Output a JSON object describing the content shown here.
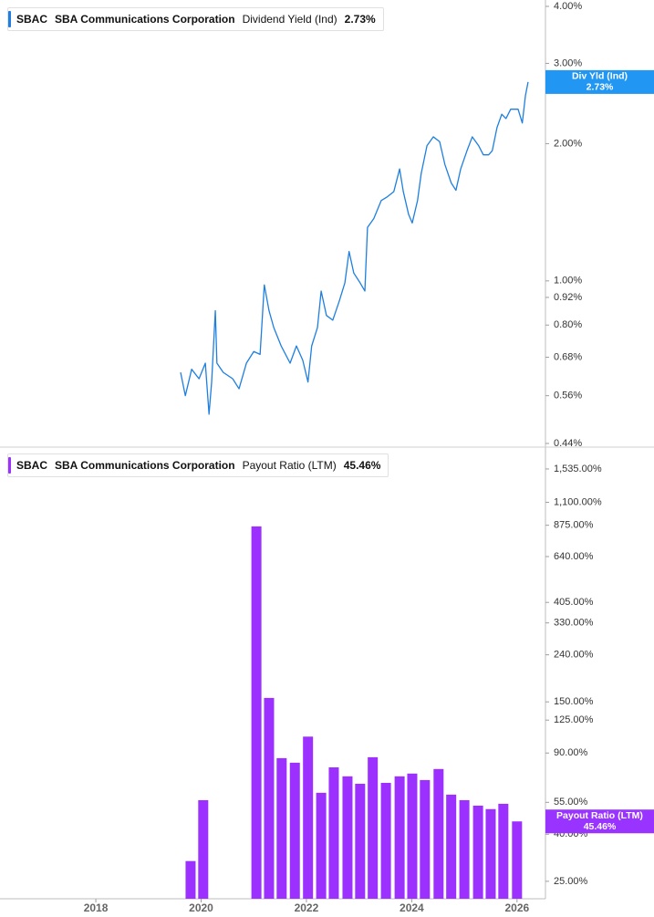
{
  "security": {
    "ticker": "SBAC",
    "name": "SBA Communications Corporation"
  },
  "chart_data": [
    {
      "type": "line",
      "yscale": "log",
      "grid": false,
      "xlim": [
        2016.18,
        2026.54
      ],
      "ylim": [
        0.44,
        4.0
      ],
      "yticks": [
        {
          "value": 4.0,
          "label": "4.00%"
        },
        {
          "value": 3.0,
          "label": "3.00%"
        },
        {
          "value": 2.0,
          "label": "2.00%"
        },
        {
          "value": 1.0,
          "label": "1.00%"
        },
        {
          "value": 0.92,
          "label": "0.92%"
        },
        {
          "value": 0.8,
          "label": "0.80%"
        },
        {
          "value": 0.68,
          "label": "0.68%"
        },
        {
          "value": 0.56,
          "label": "0.56%"
        },
        {
          "value": 0.44,
          "label": "0.44%"
        }
      ],
      "series": [
        {
          "name": "Dividend Yield (Ind)",
          "short_name": "Div Yld (Ind)",
          "color": "#1e7fe0",
          "badge_color": "#2196f3",
          "last_value_label": "2.73%",
          "x": [
            2019.61,
            2019.7,
            2019.82,
            2019.96,
            2020.08,
            2020.15,
            2020.2,
            2020.27,
            2020.3,
            2020.42,
            2020.6,
            2020.72,
            2020.86,
            2021.0,
            2021.12,
            2021.2,
            2021.29,
            2021.38,
            2021.52,
            2021.69,
            2021.81,
            2021.93,
            2022.03,
            2022.1,
            2022.21,
            2022.28,
            2022.38,
            2022.5,
            2022.62,
            2022.73,
            2022.81,
            2022.9,
            2023.02,
            2023.11,
            2023.16,
            2023.28,
            2023.42,
            2023.54,
            2023.66,
            2023.77,
            2023.84,
            2023.94,
            2024.01,
            2024.11,
            2024.18,
            2024.29,
            2024.41,
            2024.53,
            2024.63,
            2024.75,
            2024.84,
            2024.93,
            2025.05,
            2025.15,
            2025.27,
            2025.36,
            2025.46,
            2025.53,
            2025.62,
            2025.71,
            2025.79,
            2025.88,
            2026.02,
            2026.1,
            2026.16,
            2026.21
          ],
          "values": [
            0.63,
            0.56,
            0.64,
            0.61,
            0.66,
            0.51,
            0.6,
            0.86,
            0.66,
            0.63,
            0.61,
            0.58,
            0.66,
            0.7,
            0.69,
            0.98,
            0.86,
            0.79,
            0.72,
            0.66,
            0.72,
            0.67,
            0.6,
            0.72,
            0.79,
            0.95,
            0.84,
            0.82,
            0.9,
            0.99,
            1.16,
            1.04,
            0.99,
            0.95,
            1.31,
            1.37,
            1.5,
            1.53,
            1.57,
            1.76,
            1.57,
            1.4,
            1.34,
            1.5,
            1.72,
            1.98,
            2.07,
            2.02,
            1.8,
            1.64,
            1.58,
            1.76,
            1.93,
            2.07,
            1.98,
            1.89,
            1.89,
            1.93,
            2.17,
            2.32,
            2.27,
            2.38,
            2.38,
            2.22,
            2.55,
            2.73
          ]
        }
      ]
    },
    {
      "type": "bar",
      "yscale": "log",
      "grid": false,
      "xlim": [
        2016.18,
        2026.54
      ],
      "ylim": [
        21,
        1875
      ],
      "xticks": [
        2018,
        2020,
        2022,
        2024,
        2026
      ],
      "yticks": [
        {
          "value": 1535,
          "label": "1,535.00%"
        },
        {
          "value": 1100,
          "label": "1,100.00%"
        },
        {
          "value": 875,
          "label": "875.00%"
        },
        {
          "value": 640,
          "label": "640.00%"
        },
        {
          "value": 405,
          "label": "405.00%"
        },
        {
          "value": 330,
          "label": "330.00%"
        },
        {
          "value": 240,
          "label": "240.00%"
        },
        {
          "value": 150,
          "label": "150.00%"
        },
        {
          "value": 125,
          "label": "125.00%"
        },
        {
          "value": 90,
          "label": "90.00%"
        },
        {
          "value": 55,
          "label": "55.00%"
        },
        {
          "value": 40,
          "label": "40.00%"
        },
        {
          "value": 25,
          "label": "25.00%"
        }
      ],
      "series": [
        {
          "name": "Payout Ratio (LTM)",
          "short_name": "Payout Ratio (LTM)",
          "color": "#9b30ff",
          "badge_color": "#9933ff",
          "last_value_label": "45.46%",
          "x": [
            2019.8,
            2020.04,
            2021.05,
            2021.29,
            2021.53,
            2021.78,
            2022.03,
            2022.28,
            2022.52,
            2022.78,
            2023.02,
            2023.26,
            2023.51,
            2023.77,
            2024.01,
            2024.25,
            2024.51,
            2024.75,
            2025.0,
            2025.26,
            2025.5,
            2025.74,
            2026.0
          ],
          "values": [
            30.6,
            56.2,
            865,
            156,
            85.5,
            81.7,
            106,
            60.5,
            78.0,
            71.3,
            66.2,
            86.3,
            66.8,
            71.3,
            73.3,
            68.7,
            76.7,
            59.4,
            56.2,
            53.2,
            51.4,
            54.2,
            45.46
          ]
        }
      ]
    }
  ]
}
